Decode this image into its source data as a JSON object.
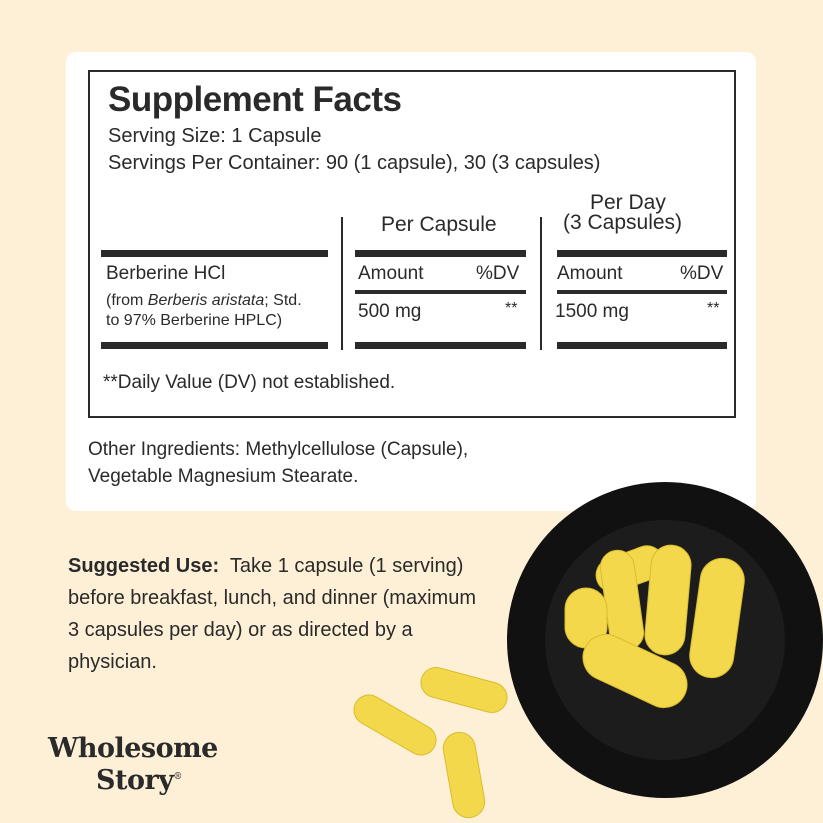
{
  "facts": {
    "title": "Supplement Facts",
    "serving_size": "Serving Size: 1 Capsule",
    "servings_per_container": "Servings Per Container: 90 (1 capsule), 30 (3 capsules)",
    "col_per_capsule": "Per Capsule",
    "col_per_day_1": "Per Day",
    "col_per_day_2": "(3 Capsules)",
    "amount_label": "Amount",
    "dv_label": "%DV",
    "ingredient": {
      "name": "Berberine HCl",
      "source_prefix": "(from ",
      "source_latin": "Berberis aristata",
      "source_suffix": "; Std.",
      "standardization": "to 97% Berberine HPLC)",
      "per_capsule_amount": "500 mg",
      "per_capsule_dv": "**",
      "per_day_amount": "1500 mg",
      "per_day_dv": "**"
    },
    "footnote": "**Daily Value (DV) not established."
  },
  "other_ingredients": {
    "line1": "Other Ingredients: Methylcellulose (Capsule),",
    "line2": "Vegetable Magnesium Stearate."
  },
  "suggested_use": {
    "label": "Suggested Use:",
    "text": "Take 1 capsule (1 serving) before breakfast, lunch, and dinner (maximum 3 capsules per day) or as directed by a physician."
  },
  "brand": {
    "line1": "Wholesome",
    "line2": "Story",
    "mark": "®"
  },
  "colors": {
    "background": "#fdf0d6",
    "card": "#ffffff",
    "text": "#2a2a2a",
    "capsule": "#f2d84a",
    "jar": "#111111"
  }
}
